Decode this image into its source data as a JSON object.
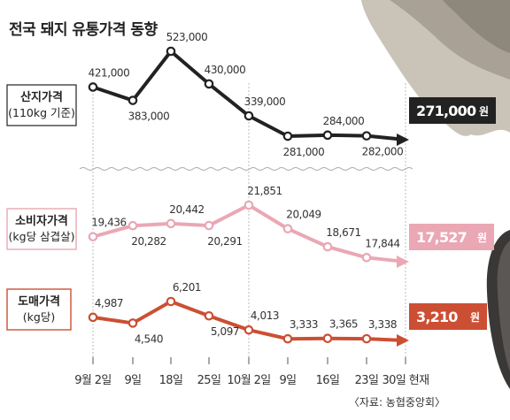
{
  "title": "전국 돼지 유통가격 동향",
  "source": "〈자료: 농협중앙회〉",
  "colors": {
    "producer": "#222222",
    "consumer": "#eaa7b4",
    "wholesale": "#cc4f33",
    "grid": "#bbbbbb"
  },
  "chart_data": {
    "type": "line",
    "categories": [
      "9월 2일",
      "9일",
      "18일",
      "25일",
      "10월 2일",
      "9일",
      "16일",
      "23일",
      "30일 현재"
    ],
    "series": [
      {
        "key": "producer",
        "name": "산지가격",
        "name_sub": "(110kg 기준)",
        "values": [
          421000,
          383000,
          523000,
          430000,
          339000,
          281000,
          284000,
          282000,
          271000
        ],
        "labels": [
          "421,000",
          "383,000",
          "523,000",
          "430,000",
          "339,000",
          "281,000",
          "284,000",
          "282,000",
          "271,000"
        ],
        "unit": "원"
      },
      {
        "key": "consumer",
        "name": "소비자가격",
        "name_sub": "(kg당 삼겹살)",
        "values": [
          19436,
          20282,
          20442,
          20291,
          21851,
          20049,
          18671,
          17844,
          17527
        ],
        "labels": [
          "19,436",
          "20,282",
          "20,442",
          "20,291",
          "21,851",
          "20,049",
          "18,671",
          "17,844",
          "17,527"
        ],
        "unit": "원"
      },
      {
        "key": "wholesale",
        "name": "도매가격",
        "name_sub": "(kg당)",
        "values": [
          4987,
          4540,
          6201,
          5097,
          4013,
          3333,
          3365,
          3338,
          3210
        ],
        "labels": [
          "4,987",
          "4,540",
          "6,201",
          "5,097",
          "4,013",
          "3,333",
          "3,365",
          "3,338",
          "3,210"
        ],
        "unit": "원"
      }
    ]
  }
}
